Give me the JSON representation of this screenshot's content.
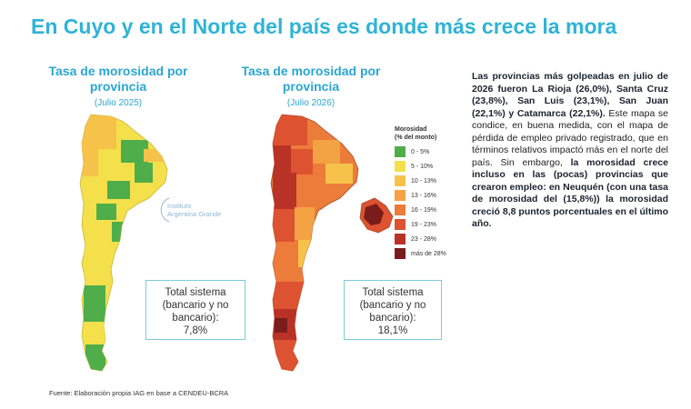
{
  "title": "En Cuyo y en el Norte del país es donde más crece la mora",
  "map_left": {
    "heading_line1": "Tasa de morosidad por",
    "heading_line2": "provincia",
    "date": "(Julio 2025)",
    "total_line1": "Total sistema",
    "total_line2": "(bancario y no",
    "total_line3": "bancario):",
    "total_value": "7,8%"
  },
  "map_right": {
    "heading_line1": "Tasa de morosidad por",
    "heading_line2": "provincia",
    "date": "(Julio 2026)",
    "total_line1": "Total sistema",
    "total_line2": "(bancario y no",
    "total_line3": "bancario):",
    "total_value": "18,1%"
  },
  "legend": {
    "title_line1": "Morosidad",
    "title_line2": "(% del monto)",
    "items": [
      {
        "label": "0 - 5%",
        "color": "#4fae4a"
      },
      {
        "label": "5 - 10%",
        "color": "#f4e04a"
      },
      {
        "label": "10 - 13%",
        "color": "#f6c24a"
      },
      {
        "label": "13 - 16%",
        "color": "#f3a244"
      },
      {
        "label": "16 - 19%",
        "color": "#ec7c3a"
      },
      {
        "label": "19 - 23%",
        "color": "#dd5230"
      },
      {
        "label": "23 - 28%",
        "color": "#b93226"
      },
      {
        "label": "más de 28%",
        "color": "#7a1c1c"
      }
    ]
  },
  "watermark": {
    "line1": "Instituto",
    "line2": "Argentina Grande"
  },
  "body": {
    "p1": "Las provincias más golpeadas en julio de 2026 fueron La Rioja (26,0%), Santa Cruz (23,8%), San Luis (23,1%), San Juan (22,1%) y Catamarca (22,1%).",
    "p2": " Este mapa se condice, en buena medida, con el mapa de pérdida de empleo privado registrado, que en términos relativos impactó más en el norte del país. Sin embargo, ",
    "p3": "la morosidad crece incluso en las (pocas) provincias que crearon empleo: en Neuquén (con una tasa de morosidad del (15,8%)) la morosidad creció 8,8 puntos porcentuales en el último año."
  },
  "footer": "Fuente: Elaboración propia IAG en base a  CENDEU-BCRA"
}
